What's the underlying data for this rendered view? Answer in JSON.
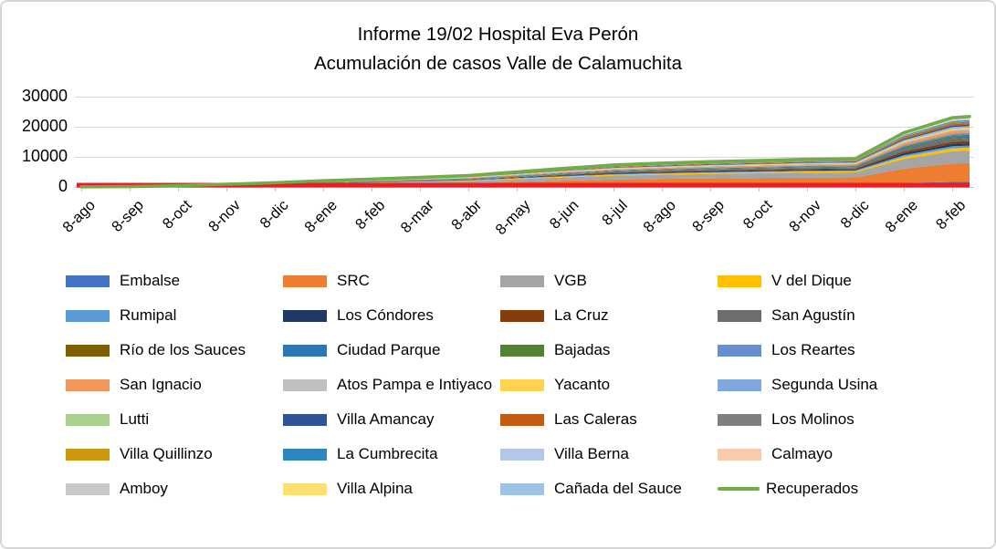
{
  "window": {
    "background": "#ffffff",
    "border_color": "#d6d6d6"
  },
  "chart_data": {
    "type": "area",
    "stacked": true,
    "title_line1": "Informe 19/02 Hospital Eva Perón",
    "title_line2": "Acumulación de casos Valle de Calamuchita",
    "grid": "horizontal",
    "gridline_color": "#d9d9d9",
    "axis_color": "#bfbfbf",
    "legend_position": "bottom",
    "ylim": [
      0,
      30000
    ],
    "y_tick_labels": [
      "30000",
      "20000",
      "10000",
      "0"
    ],
    "x_tick_labels": [
      "8-ago",
      "8-sep",
      "8-oct",
      "8-nov",
      "8-dic",
      "8-ene",
      "8-feb",
      "8-mar",
      "8-abr",
      "8-may",
      "8-jun",
      "8-jul",
      "8-ago",
      "8-sep",
      "8-oct",
      "8-nov",
      "8-dic",
      "8-ene",
      "8-feb"
    ],
    "totals_estimated": [
      30,
      120,
      400,
      900,
      1400,
      2100,
      2600,
      3200,
      3800,
      5000,
      6200,
      7300,
      7900,
      8400,
      8800,
      9200,
      9400,
      18000,
      23000,
      23400
    ],
    "red_baseline_color": "#ED1C24",
    "recuperados_line": {
      "name": "Recuperados",
      "color": "#70AD47"
    },
    "series": [
      {
        "name": "Embalse",
        "color": "#4472C4",
        "final_value_estimated": 1700
      },
      {
        "name": "SRC",
        "color": "#ED7D31",
        "final_value_estimated": 6200
      },
      {
        "name": "VGB",
        "color": "#A5A5A5",
        "final_value_estimated": 4100
      },
      {
        "name": "V del Dique",
        "color": "#FFC000",
        "final_value_estimated": 1000
      },
      {
        "name": "Rumipal",
        "color": "#5B9BD5",
        "final_value_estimated": 700
      },
      {
        "name": "Los Cóndores",
        "color": "#203864",
        "final_value_estimated": 800
      },
      {
        "name": "La Cruz",
        "color": "#843C0C",
        "final_value_estimated": 700
      },
      {
        "name": "San Agustín",
        "color": "#6E6E6E",
        "final_value_estimated": 800
      },
      {
        "name": "Río de los Sauces",
        "color": "#7F6000",
        "final_value_estimated": 300
      },
      {
        "name": "Ciudad Parque",
        "color": "#2E75B6",
        "final_value_estimated": 500
      },
      {
        "name": "Bajadas",
        "color": "#538135",
        "final_value_estimated": 500
      },
      {
        "name": "Los Reartes",
        "color": "#698ED0",
        "final_value_estimated": 600
      },
      {
        "name": "San Ignacio",
        "color": "#F1975A",
        "final_value_estimated": 900
      },
      {
        "name": "Atos Pampa e Intiyaco",
        "color": "#BFBFBF",
        "final_value_estimated": 400
      },
      {
        "name": "Yacanto",
        "color": "#FFD34D",
        "final_value_estimated": 450
      },
      {
        "name": "Segunda Usina",
        "color": "#7FA8DC",
        "final_value_estimated": 350
      },
      {
        "name": "Lutti",
        "color": "#A9D18E",
        "final_value_estimated": 150
      },
      {
        "name": "Villa Amancay",
        "color": "#2F5597",
        "final_value_estimated": 500
      },
      {
        "name": "Las Caleras",
        "color": "#C55A11",
        "final_value_estimated": 450
      },
      {
        "name": "Los Molinos",
        "color": "#7F7F7F",
        "final_value_estimated": 500
      },
      {
        "name": "Villa Quillinzo",
        "color": "#C9980E",
        "final_value_estimated": 250
      },
      {
        "name": "La Cumbrecita",
        "color": "#2E86C1",
        "final_value_estimated": 300
      },
      {
        "name": "Villa Berna",
        "color": "#B4C7E7",
        "final_value_estimated": 250
      },
      {
        "name": "Calmayo",
        "color": "#F8CBAD",
        "final_value_estimated": 200
      },
      {
        "name": "Amboy",
        "color": "#C9C9C9",
        "final_value_estimated": 300
      },
      {
        "name": "Villa Alpina",
        "color": "#FFDF70",
        "final_value_estimated": 150
      },
      {
        "name": "Cañada del Sauce",
        "color": "#9DC3E6",
        "final_value_estimated": 250
      }
    ]
  }
}
